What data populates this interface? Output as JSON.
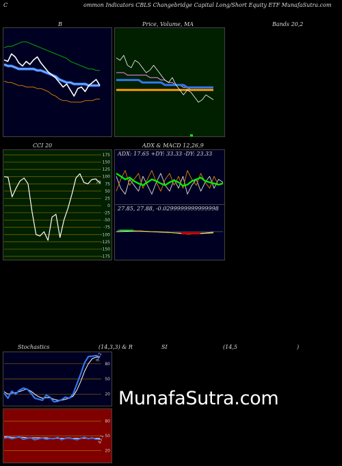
{
  "header": {
    "c": "C",
    "title": "ommon Indicators CBLS Changebridge Capital Long/Short Equity ETF MunafaSutra.com"
  },
  "labels": {
    "b": "B",
    "price": "Price, Volume, MA",
    "bands": "Bands 20,2",
    "cci": "CCI 20",
    "adx": "ADX & MACD 12,26,9",
    "stoch_a": "Stochastics",
    "stoch_b": "(14,3,3) & R",
    "rsi_a": "SI",
    "rsi_b": "(14,5",
    "rsi_c": ")"
  },
  "watermark": "MunafaSutra.com",
  "colors": {
    "panel_bg": "#000022",
    "price_bg": "#002000",
    "cci_bg": "#002000",
    "rsi_bg": "#800000",
    "blue": "#3377ee",
    "green": "#00ee00",
    "orange": "#ff9900",
    "white": "#ffffff"
  },
  "chart_data": [
    {
      "type": "line",
      "name": "bollinger",
      "series": [
        {
          "values": [
            48,
            47,
            52,
            50,
            46,
            44,
            47,
            45,
            48,
            50,
            46,
            43,
            40,
            38,
            36,
            33,
            30,
            32,
            28,
            24,
            29,
            30,
            27,
            31,
            33,
            35,
            31
          ]
        },
        {
          "values": [
            45,
            44,
            44,
            43,
            42,
            42,
            42,
            42,
            42,
            41,
            41,
            40,
            39,
            38,
            37,
            35,
            34,
            33,
            33,
            32,
            32,
            32,
            32,
            31,
            31,
            31,
            31
          ]
        },
        {
          "values": [
            56,
            57,
            57,
            58,
            59,
            60,
            60,
            59,
            58,
            57,
            56,
            55,
            54,
            53,
            52,
            51,
            50,
            49,
            47,
            46,
            45,
            44,
            43,
            42,
            42,
            41,
            41
          ]
        },
        {
          "values": [
            34,
            33,
            33,
            32,
            31,
            31,
            30,
            30,
            30,
            29,
            29,
            28,
            27,
            25,
            24,
            22,
            21,
            21,
            20,
            20,
            20,
            20,
            21,
            21,
            21,
            22,
            22
          ]
        }
      ]
    },
    {
      "type": "line",
      "name": "price_ma",
      "series": [
        {
          "values": [
            51,
            50,
            52,
            48,
            47,
            50,
            49,
            47,
            45,
            46,
            48,
            46,
            44,
            42,
            41,
            43,
            40,
            38,
            36,
            38,
            37,
            35,
            33,
            34,
            36,
            35,
            34
          ]
        },
        {
          "values": [
            45,
            45,
            45,
            44,
            44,
            44,
            44,
            44,
            44,
            43,
            43,
            43,
            42,
            42,
            41,
            41,
            40,
            40,
            39,
            39,
            38,
            38,
            38,
            38,
            38,
            38,
            38
          ]
        },
        {
          "values": [
            42,
            42,
            42,
            42,
            42,
            42,
            42,
            41,
            41,
            41,
            41,
            41,
            41,
            40,
            40,
            40,
            40,
            40,
            40,
            39,
            39,
            39,
            39,
            39,
            39,
            39,
            39
          ]
        },
        {
          "values": [
            38,
            38,
            38,
            38,
            38,
            38,
            38,
            38,
            38,
            38,
            38,
            38,
            38,
            38,
            38,
            38,
            38,
            38,
            38,
            38,
            38,
            38,
            38,
            38,
            38,
            38,
            38
          ]
        }
      ]
    },
    {
      "type": "line",
      "name": "cci",
      "y_ticks": [
        175,
        150,
        125,
        100,
        75,
        50,
        25,
        0,
        -25,
        -50,
        -75,
        -100,
        -125,
        -150,
        -175
      ],
      "latest": "78",
      "values": [
        100,
        98,
        30,
        60,
        85,
        95,
        75,
        -20,
        -100,
        -105,
        -90,
        -120,
        -40,
        -30,
        -110,
        -50,
        -10,
        40,
        95,
        110,
        80,
        75,
        90,
        92,
        78
      ]
    },
    {
      "type": "line",
      "name": "adx_macd",
      "adx_text": "ADX: 17.65 +DY: 33.33 -DY: 23.33",
      "macd_text": "27.85, 27.88, -0.0299999999999998",
      "adx": [
        65,
        60,
        55,
        58,
        52,
        48,
        45,
        50,
        55,
        52,
        48,
        45,
        50,
        53,
        50,
        44,
        46,
        52,
        55,
        58,
        52,
        50,
        48,
        46,
        48
      ],
      "pdi": [
        60,
        40,
        30,
        55,
        45,
        35,
        60,
        45,
        30,
        50,
        65,
        45,
        35,
        55,
        40,
        60,
        30,
        45,
        55,
        35,
        50,
        60,
        40,
        55,
        50
      ],
      "mdi": [
        35,
        55,
        70,
        45,
        55,
        65,
        40,
        55,
        70,
        50,
        35,
        55,
        65,
        45,
        60,
        40,
        70,
        55,
        45,
        65,
        50,
        40,
        60,
        45,
        50
      ]
    },
    {
      "type": "line",
      "name": "stochastics",
      "y_ticks": [
        80,
        50,
        20
      ],
      "latest": "94.2",
      "k": [
        22,
        12,
        26,
        20,
        28,
        32,
        30,
        22,
        12,
        10,
        8,
        18,
        14,
        5,
        6,
        9,
        14,
        12,
        20,
        40,
        60,
        82,
        94,
        95,
        96,
        94
      ],
      "d": [
        25,
        20,
        22,
        23,
        25,
        28,
        30,
        26,
        20,
        15,
        12,
        13,
        13,
        10,
        8,
        8,
        10,
        12,
        16,
        28,
        45,
        65,
        80,
        90,
        93,
        94
      ]
    },
    {
      "type": "line",
      "name": "rsi",
      "y_ticks": [
        80,
        50,
        20
      ],
      "latest": "43.1",
      "rsi": [
        45,
        47,
        44,
        46,
        48,
        43,
        45,
        46,
        42,
        44,
        46,
        43,
        45,
        44,
        47,
        42,
        45,
        46,
        44,
        42,
        45,
        47,
        44,
        46,
        43,
        43
      ],
      "ma": [
        48,
        48,
        47,
        47,
        47,
        47,
        46,
        46,
        46,
        46,
        46,
        46,
        45,
        45,
        45,
        45,
        45,
        45,
        45,
        45,
        45,
        45,
        45,
        45,
        45,
        45
      ]
    }
  ]
}
